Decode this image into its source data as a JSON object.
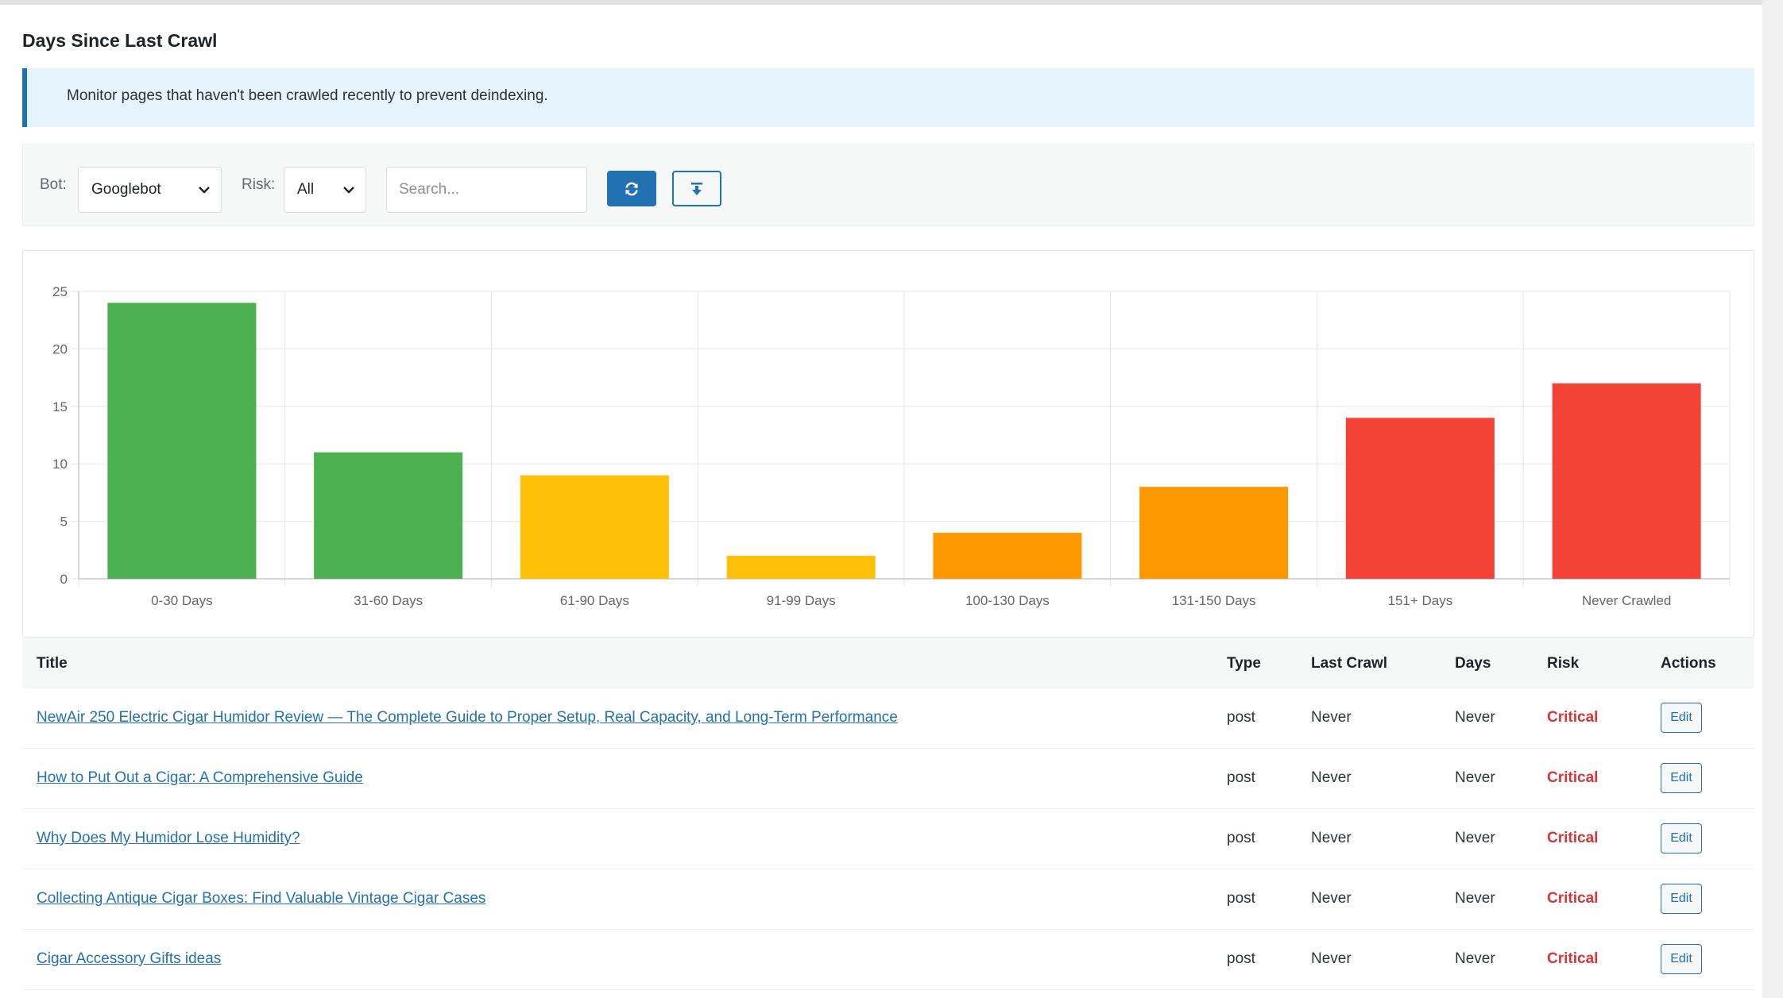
{
  "page": {
    "title": "Days Since Last Crawl",
    "notice": "Monitor pages that haven't been crawled recently to prevent deindexing."
  },
  "filters": {
    "bot_label": "Bot:",
    "bot_value": "Googlebot",
    "risk_label": "Risk:",
    "risk_value": "All",
    "search_placeholder": "Search...",
    "refresh_icon": "refresh-icon",
    "export_icon": "download-icon"
  },
  "chart_data": {
    "type": "bar",
    "categories": [
      "0-30 Days",
      "31-60 Days",
      "61-90 Days",
      "91-99 Days",
      "100-130 Days",
      "131-150 Days",
      "151+ Days",
      "Never Crawled"
    ],
    "values": [
      24,
      11,
      9,
      2,
      4,
      8,
      14,
      17
    ],
    "colors": [
      "#4caf50",
      "#4caf50",
      "#ffc107",
      "#ffc107",
      "#ff9800",
      "#ff9800",
      "#f44336",
      "#f44336"
    ],
    "ylim": [
      0,
      25
    ],
    "yticks": [
      0,
      5,
      10,
      15,
      20,
      25
    ],
    "grid": true,
    "legend": false
  },
  "table": {
    "columns": [
      "Title",
      "Type",
      "Last Crawl",
      "Days",
      "Risk",
      "Actions"
    ],
    "rows": [
      {
        "title": "NewAir 250 Electric Cigar Humidor Review — The Complete Guide to Proper Setup, Real Capacity, and Long-Term Performance",
        "type": "post",
        "last_crawl": "Never",
        "days": "Never",
        "risk": "Critical",
        "action": "Edit"
      },
      {
        "title": "How to Put Out a Cigar: A Comprehensive Guide",
        "type": "post",
        "last_crawl": "Never",
        "days": "Never",
        "risk": "Critical",
        "action": "Edit"
      },
      {
        "title": "Why Does My Humidor Lose Humidity?",
        "type": "post",
        "last_crawl": "Never",
        "days": "Never",
        "risk": "Critical",
        "action": "Edit"
      },
      {
        "title": "Collecting Antique Cigar Boxes: Find Valuable Vintage Cigar Cases",
        "type": "post",
        "last_crawl": "Never",
        "days": "Never",
        "risk": "Critical",
        "action": "Edit"
      },
      {
        "title": "Cigar Accessory Gifts ideas",
        "type": "post",
        "last_crawl": "Never",
        "days": "Never",
        "risk": "Critical",
        "action": "Edit"
      }
    ]
  },
  "colors": {
    "accent": "#2271b1",
    "critical": "#d63638",
    "notice_bg": "#e5f3fd"
  }
}
